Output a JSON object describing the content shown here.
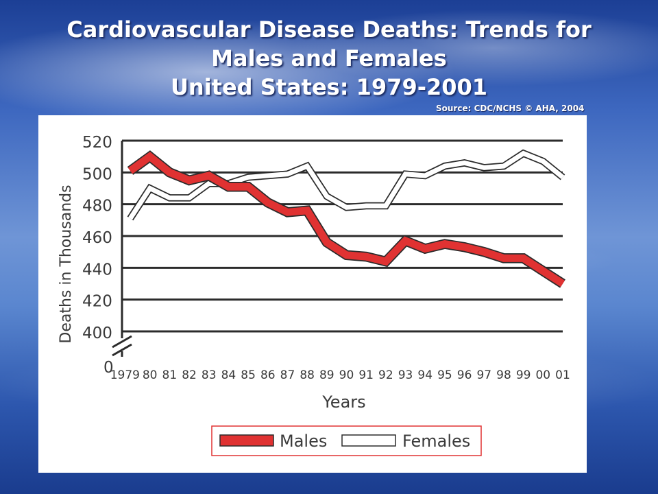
{
  "title_lines": [
    "Cardiovascular Disease Deaths: Trends  for",
    "Males and Females",
    "United States: 1979-2001"
  ],
  "source": "Source: CDC/NCHS © AHA, 2004",
  "colors": {
    "males": "#e03232",
    "females": "#ffffff",
    "grid": "#2b2b2b"
  },
  "chart_data": {
    "type": "line",
    "ylabel": "Deaths in Thousands",
    "xlabel": "Years",
    "y_ticks": [
      "520",
      "500",
      "480",
      "460",
      "440",
      "420",
      "400"
    ],
    "y_zero_label": "0",
    "ylim": [
      400,
      520
    ],
    "axis_break": true,
    "x_tick_labels": [
      "1979",
      "80",
      "81",
      "82",
      "83",
      "84",
      "85",
      "86",
      "87",
      "88",
      "89",
      "90",
      "91",
      "92",
      "93",
      "94",
      "95",
      "96",
      "97",
      "98",
      "99",
      "00",
      "01"
    ],
    "x": [
      1979,
      1980,
      1981,
      1982,
      1983,
      1984,
      1985,
      1986,
      1987,
      1988,
      1989,
      1990,
      1991,
      1992,
      1993,
      1994,
      1995,
      1996,
      1997,
      1998,
      1999,
      2000,
      2001
    ],
    "series": [
      {
        "name": "Males",
        "values": [
          501,
          510,
          500,
          495,
          498,
          491,
          491,
          481,
          475,
          476,
          456,
          448,
          447,
          444,
          457,
          452,
          455,
          453,
          450,
          446,
          446,
          438,
          430
        ]
      },
      {
        "name": "Females",
        "values": [
          471,
          490,
          484,
          484,
          493,
          493,
          497,
          498,
          499,
          504,
          485,
          478,
          479,
          479,
          499,
          498,
          504,
          506,
          503,
          504,
          512,
          507,
          497
        ]
      }
    ],
    "grid": true,
    "legend_position": "bottom"
  }
}
